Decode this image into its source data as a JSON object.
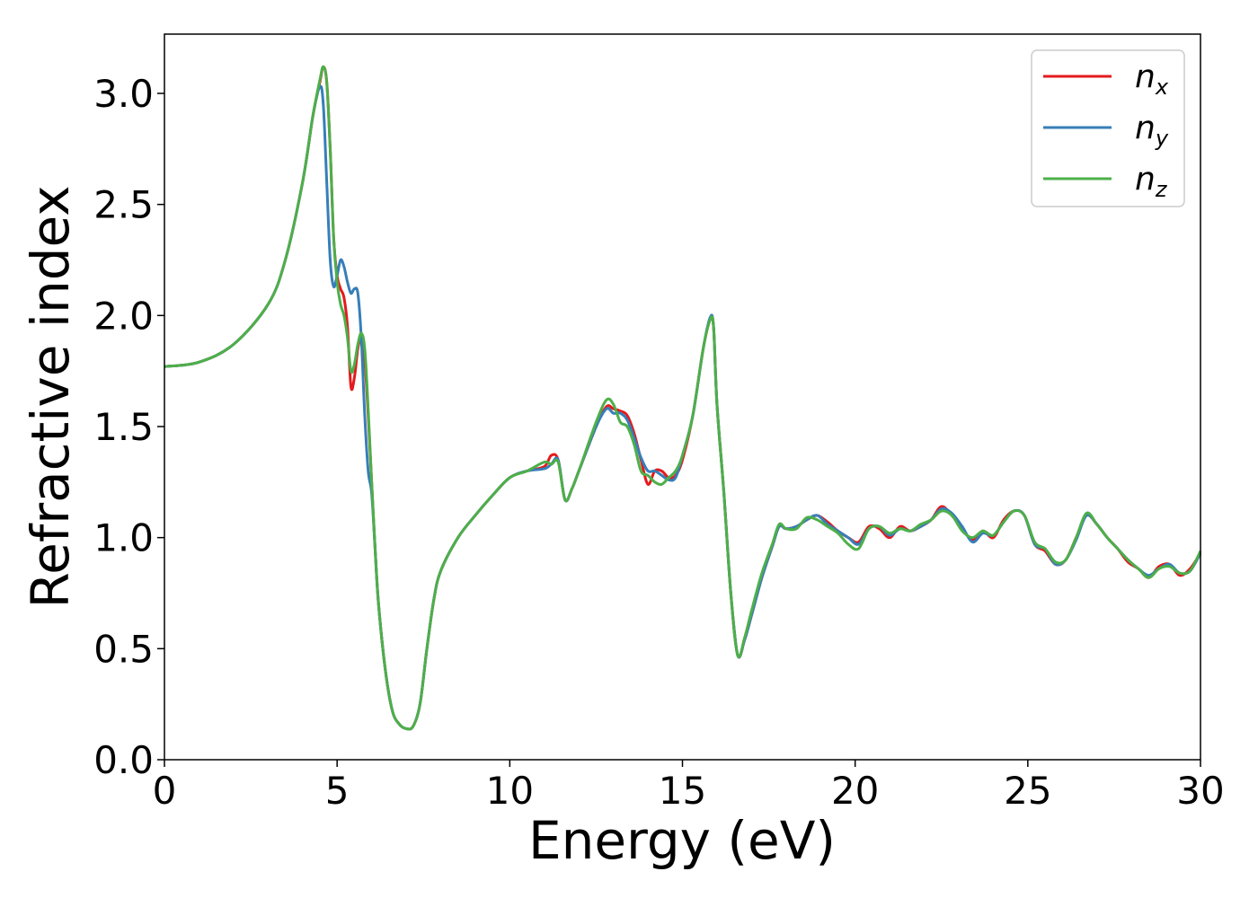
{
  "chart_data": {
    "type": "line",
    "xlabel": "Energy (eV)",
    "ylabel": "Refractive index",
    "xlim": [
      0,
      30
    ],
    "ylim": [
      0,
      3.25
    ],
    "xticks": [
      "0",
      "5",
      "10",
      "15",
      "20",
      "25",
      "30"
    ],
    "yticks": [
      "0.0",
      "0.5",
      "1.0",
      "1.5",
      "2.0",
      "2.5",
      "3.0"
    ],
    "grid": false,
    "legend_position": "top-right",
    "series": [
      {
        "name": "n_x",
        "name_main": "n",
        "name_sub": "x",
        "color": "#e41a1c",
        "x": [
          0,
          1,
          2,
          3,
          3.5,
          4,
          4.3,
          4.5,
          4.6,
          4.7,
          4.8,
          4.9,
          5.0,
          5.1,
          5.2,
          5.3,
          5.4,
          5.5,
          5.6,
          5.7,
          5.8,
          5.9,
          6.0,
          6.1,
          6.2,
          6.4,
          6.6,
          6.8,
          7.0,
          7.2,
          7.4,
          7.6,
          7.8,
          8,
          8.5,
          9,
          9.5,
          10,
          10.5,
          11,
          11.2,
          11.4,
          11.6,
          11.8,
          12,
          12.5,
          12.8,
          13,
          13.2,
          13.4,
          13.6,
          13.8,
          14,
          14.2,
          14.4,
          14.6,
          14.8,
          15,
          15.3,
          15.6,
          15.8,
          15.9,
          16,
          16.2,
          16.4,
          16.6,
          16.8,
          17,
          17.3,
          17.6,
          17.8,
          18,
          18.3,
          18.6,
          18.9,
          19.2,
          19.5,
          19.8,
          20.1,
          20.4,
          20.7,
          21,
          21.3,
          21.6,
          21.9,
          22.2,
          22.5,
          22.8,
          23.1,
          23.4,
          23.7,
          24,
          24.3,
          24.6,
          24.9,
          25.2,
          25.5,
          25.8,
          26.1,
          26.4,
          26.7,
          27,
          27.3,
          27.6,
          27.9,
          28.2,
          28.5,
          28.8,
          29.1,
          29.4,
          29.7,
          30
        ],
        "y": [
          1.77,
          1.79,
          1.87,
          2.05,
          2.25,
          2.6,
          2.9,
          3.05,
          3.12,
          3.05,
          2.75,
          2.35,
          2.18,
          2.12,
          2.08,
          1.95,
          1.68,
          1.72,
          1.85,
          1.9,
          1.8,
          1.55,
          1.25,
          0.95,
          0.7,
          0.4,
          0.22,
          0.16,
          0.14,
          0.15,
          0.25,
          0.5,
          0.72,
          0.85,
          1.0,
          1.1,
          1.19,
          1.27,
          1.3,
          1.32,
          1.37,
          1.35,
          1.17,
          1.22,
          1.3,
          1.5,
          1.59,
          1.58,
          1.57,
          1.55,
          1.47,
          1.35,
          1.24,
          1.3,
          1.3,
          1.27,
          1.28,
          1.35,
          1.55,
          1.85,
          1.98,
          1.95,
          1.6,
          1.2,
          0.75,
          0.47,
          0.54,
          0.65,
          0.82,
          0.96,
          1.05,
          1.04,
          1.05,
          1.08,
          1.1,
          1.07,
          1.03,
          1.0,
          0.98,
          1.05,
          1.04,
          1.0,
          1.05,
          1.03,
          1.05,
          1.08,
          1.14,
          1.1,
          1.04,
          0.99,
          1.03,
          1.0,
          1.08,
          1.12,
          1.1,
          0.97,
          0.94,
          0.88,
          0.9,
          1.0,
          1.1,
          1.06,
          1.0,
          0.95,
          0.89,
          0.86,
          0.82,
          0.87,
          0.88,
          0.83,
          0.86,
          0.93
        ]
      },
      {
        "name": "n_y",
        "name_main": "n",
        "name_sub": "y",
        "color": "#377eb8",
        "x": [
          0,
          1,
          2,
          3,
          3.5,
          4,
          4.3,
          4.5,
          4.6,
          4.7,
          4.8,
          4.9,
          5.0,
          5.1,
          5.2,
          5.3,
          5.4,
          5.5,
          5.6,
          5.7,
          5.8,
          5.9,
          6.0,
          6.1,
          6.2,
          6.4,
          6.6,
          6.8,
          7.0,
          7.2,
          7.4,
          7.6,
          7.8,
          8,
          8.5,
          9,
          9.5,
          10,
          10.5,
          11,
          11.2,
          11.4,
          11.6,
          11.8,
          12,
          12.5,
          12.8,
          13,
          13.2,
          13.4,
          13.6,
          13.8,
          14,
          14.2,
          14.4,
          14.6,
          14.8,
          15,
          15.3,
          15.6,
          15.8,
          15.9,
          16,
          16.2,
          16.4,
          16.6,
          16.8,
          17,
          17.3,
          17.6,
          17.8,
          18,
          18.3,
          18.6,
          18.9,
          19.2,
          19.5,
          19.8,
          20.1,
          20.4,
          20.7,
          21,
          21.3,
          21.6,
          21.9,
          22.2,
          22.5,
          22.8,
          23.1,
          23.4,
          23.7,
          24,
          24.3,
          24.6,
          24.9,
          25.2,
          25.5,
          25.8,
          26.1,
          26.4,
          26.7,
          27,
          27.3,
          27.6,
          27.9,
          28.2,
          28.5,
          28.8,
          29.1,
          29.4,
          29.7,
          30
        ],
        "y": [
          1.77,
          1.79,
          1.87,
          2.05,
          2.25,
          2.6,
          2.9,
          3.03,
          2.95,
          2.6,
          2.25,
          2.13,
          2.18,
          2.25,
          2.22,
          2.15,
          2.1,
          2.12,
          2.1,
          1.9,
          1.55,
          1.3,
          1.2,
          0.95,
          0.7,
          0.4,
          0.22,
          0.16,
          0.14,
          0.15,
          0.25,
          0.5,
          0.72,
          0.85,
          1.0,
          1.1,
          1.19,
          1.27,
          1.3,
          1.31,
          1.33,
          1.35,
          1.17,
          1.22,
          1.3,
          1.5,
          1.58,
          1.56,
          1.56,
          1.53,
          1.45,
          1.36,
          1.3,
          1.3,
          1.28,
          1.26,
          1.27,
          1.37,
          1.55,
          1.85,
          1.99,
          1.95,
          1.6,
          1.2,
          0.75,
          0.47,
          0.54,
          0.65,
          0.82,
          0.96,
          1.05,
          1.04,
          1.05,
          1.08,
          1.1,
          1.06,
          1.03,
          1.0,
          0.97,
          1.04,
          1.05,
          1.01,
          1.04,
          1.03,
          1.05,
          1.08,
          1.13,
          1.11,
          1.05,
          0.98,
          1.02,
          1.01,
          1.07,
          1.12,
          1.1,
          0.97,
          0.95,
          0.88,
          0.9,
          0.99,
          1.1,
          1.06,
          1.0,
          0.95,
          0.9,
          0.86,
          0.83,
          0.86,
          0.88,
          0.84,
          0.85,
          0.93
        ]
      },
      {
        "name": "n_z",
        "name_main": "n",
        "name_sub": "z",
        "color": "#4daf4a",
        "x": [
          0,
          1,
          2,
          3,
          3.5,
          4,
          4.3,
          4.5,
          4.6,
          4.7,
          4.8,
          4.9,
          5.0,
          5.1,
          5.2,
          5.3,
          5.4,
          5.5,
          5.6,
          5.7,
          5.8,
          5.9,
          6.0,
          6.1,
          6.2,
          6.4,
          6.6,
          6.8,
          7.0,
          7.2,
          7.4,
          7.6,
          7.8,
          8,
          8.5,
          9,
          9.5,
          10,
          10.5,
          11,
          11.2,
          11.4,
          11.6,
          11.8,
          12,
          12.5,
          12.8,
          13,
          13.2,
          13.4,
          13.6,
          13.8,
          14,
          14.2,
          14.4,
          14.6,
          14.8,
          15,
          15.3,
          15.6,
          15.8,
          15.9,
          16,
          16.2,
          16.4,
          16.6,
          16.8,
          17,
          17.3,
          17.6,
          17.8,
          18,
          18.3,
          18.6,
          18.9,
          19.2,
          19.5,
          19.8,
          20.1,
          20.4,
          20.7,
          21,
          21.3,
          21.6,
          21.9,
          22.2,
          22.5,
          22.8,
          23.1,
          23.4,
          23.7,
          24,
          24.3,
          24.6,
          24.9,
          25.2,
          25.5,
          25.8,
          26.1,
          26.4,
          26.7,
          27,
          27.3,
          27.6,
          27.9,
          28.2,
          28.5,
          28.8,
          29.1,
          29.4,
          29.7,
          30
        ],
        "y": [
          1.77,
          1.79,
          1.87,
          2.05,
          2.25,
          2.6,
          2.9,
          3.06,
          3.12,
          3.05,
          2.75,
          2.35,
          2.15,
          2.05,
          2.0,
          1.9,
          1.75,
          1.78,
          1.87,
          1.92,
          1.85,
          1.58,
          1.25,
          0.95,
          0.7,
          0.4,
          0.22,
          0.16,
          0.14,
          0.15,
          0.25,
          0.5,
          0.72,
          0.85,
          1.0,
          1.1,
          1.19,
          1.27,
          1.3,
          1.34,
          1.33,
          1.34,
          1.17,
          1.22,
          1.3,
          1.52,
          1.62,
          1.6,
          1.52,
          1.5,
          1.42,
          1.3,
          1.28,
          1.25,
          1.24,
          1.27,
          1.3,
          1.37,
          1.55,
          1.85,
          1.98,
          1.95,
          1.6,
          1.2,
          0.75,
          0.47,
          0.55,
          0.67,
          0.84,
          0.97,
          1.06,
          1.04,
          1.04,
          1.09,
          1.08,
          1.05,
          1.02,
          0.97,
          0.95,
          1.04,
          1.05,
          1.02,
          1.04,
          1.03,
          1.06,
          1.08,
          1.12,
          1.1,
          1.03,
          1.0,
          1.03,
          1.01,
          1.07,
          1.12,
          1.1,
          0.98,
          0.95,
          0.89,
          0.9,
          1.0,
          1.11,
          1.06,
          1.0,
          0.95,
          0.9,
          0.86,
          0.82,
          0.86,
          0.87,
          0.84,
          0.85,
          0.94
        ]
      }
    ]
  }
}
